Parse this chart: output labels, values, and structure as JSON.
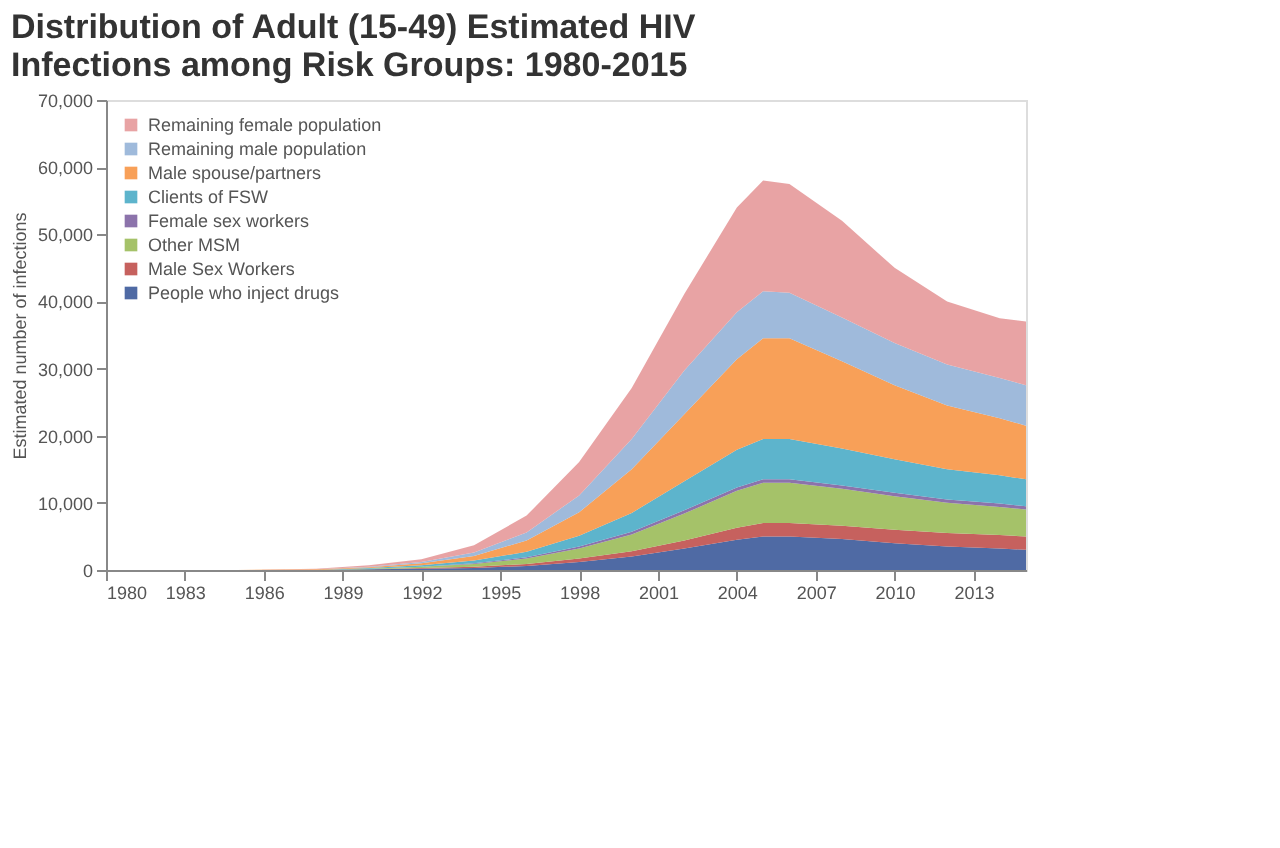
{
  "chart_data": {
    "type": "area",
    "stacked": true,
    "title": "Distribution of Adult (15-49) Estimated HIV Infections among Risk Groups: 1980-2015",
    "ylabel": "Estimated number of infections",
    "x": [
      1980,
      1985,
      1988,
      1990,
      1992,
      1994,
      1996,
      1998,
      2000,
      2002,
      2004,
      2005,
      2006,
      2008,
      2010,
      2012,
      2014,
      2015
    ],
    "xlim": [
      1980,
      2015
    ],
    "xticks": [
      1980,
      1983,
      1986,
      1989,
      1992,
      1995,
      1998,
      2001,
      2004,
      2007,
      2010,
      2013
    ],
    "ylim": [
      0,
      70000
    ],
    "yticks": [
      0,
      {
        "value": 10000,
        "label": "10,000"
      },
      {
        "value": 20000,
        "label": "20,000"
      },
      {
        "value": 30000,
        "label": "30,000"
      },
      {
        "value": 40000,
        "label": "40,000"
      },
      {
        "value": 50000,
        "label": "50,000"
      },
      {
        "value": 60000,
        "label": "60,000"
      },
      {
        "value": 70000,
        "label": "70,000"
      }
    ],
    "legend": "top left",
    "grid": false,
    "series": [
      {
        "name": "People who inject drugs",
        "color": "#3c5a9a",
        "values": [
          0,
          0,
          0,
          100,
          200,
          300,
          600,
          1200,
          2000,
          3200,
          4500,
          5000,
          5000,
          4600,
          4000,
          3500,
          3200,
          3000
        ]
      },
      {
        "name": "Male Sex Workers",
        "color": "#c0504d",
        "values": [
          0,
          0,
          0,
          0,
          100,
          200,
          300,
          500,
          800,
          1200,
          1800,
          2000,
          2000,
          2000,
          2000,
          2000,
          2000,
          2000
        ]
      },
      {
        "name": "Other MSM",
        "color": "#9bbb59",
        "values": [
          0,
          0,
          0,
          100,
          200,
          400,
          800,
          1500,
          2500,
          4000,
          5500,
          6000,
          6000,
          5500,
          5000,
          4500,
          4200,
          4000
        ]
      },
      {
        "name": "Female sex workers",
        "color": "#8064a2",
        "values": [
          0,
          0,
          0,
          0,
          0,
          100,
          200,
          300,
          400,
          500,
          500,
          500,
          500,
          500,
          500,
          500,
          500,
          500
        ]
      },
      {
        "name": "Clients of FSW",
        "color": "#4bacc6",
        "values": [
          0,
          0,
          0,
          100,
          200,
          400,
          800,
          1600,
          2800,
          4300,
          5600,
          6000,
          6000,
          5500,
          5000,
          4500,
          4200,
          4000
        ]
      },
      {
        "name": "Male spouse/partners",
        "color": "#f79646",
        "values": [
          0,
          0,
          100,
          100,
          300,
          700,
          1700,
          3500,
          6500,
          10000,
          13500,
          15000,
          15000,
          13000,
          11000,
          9500,
          8500,
          8000
        ]
      },
      {
        "name": "Remaining male population",
        "color": "#95b3d7",
        "values": [
          0,
          0,
          0,
          100,
          200,
          500,
          1200,
          2500,
          4500,
          6500,
          7000,
          7000,
          6800,
          6500,
          6300,
          6100,
          6000,
          6000
        ]
      },
      {
        "name": "Remaining female population",
        "color": "#e6999a",
        "values": [
          0,
          0,
          100,
          200,
          400,
          1100,
          2500,
          5000,
          7600,
          11400,
          15600,
          16500,
          16200,
          14400,
          11200,
          9400,
          8900,
          9500
        ]
      }
    ]
  }
}
